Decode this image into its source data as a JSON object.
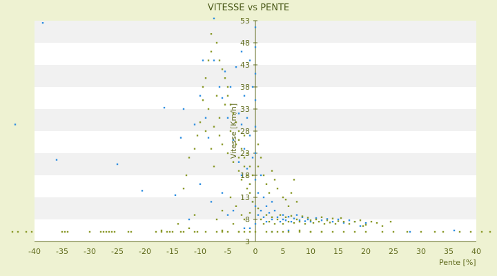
{
  "chart_data": {
    "type": "scatter",
    "title": "VITESSE vs PENTE",
    "xlabel": "Pente [%]",
    "ylabel": "Vitesse [Km/h]",
    "xlim": [
      -40,
      40
    ],
    "ylim": [
      3,
      53
    ],
    "x_ticks": [
      -40,
      -35,
      -30,
      -25,
      -20,
      -15,
      -10,
      -5,
      0,
      5,
      10,
      15,
      20,
      25,
      30,
      35,
      40
    ],
    "y_ticks": [
      3,
      8,
      13,
      18,
      23,
      28,
      33,
      38,
      43,
      48,
      53
    ],
    "grid": "alternating horizontal bands",
    "colors": {
      "background": "#eef2d2",
      "plot_band_light": "#ffffff",
      "plot_band_dark": "#f1f1f1",
      "axis": "#5f6a1c",
      "series_blue": "#2f8fe0",
      "series_olive": "#8a9a2b"
    },
    "series": [
      {
        "color": "#2f8fe0",
        "points": [
          [
            -38.5,
            52.5
          ],
          [
            -43.5,
            29.5
          ],
          [
            -36,
            21.5
          ],
          [
            -25,
            20.5
          ],
          [
            -16.5,
            33.3
          ],
          [
            -20.5,
            14.5
          ],
          [
            -14.5,
            13.5
          ],
          [
            -13.5,
            26.5
          ],
          [
            -13,
            33
          ],
          [
            -11,
            29.5
          ],
          [
            -10,
            36
          ],
          [
            -9.5,
            44
          ],
          [
            -9,
            31
          ],
          [
            -8.5,
            26.5
          ],
          [
            -7.5,
            53.5
          ],
          [
            -7.5,
            44
          ],
          [
            -6.5,
            38
          ],
          [
            -6,
            35.5
          ],
          [
            -5.5,
            41.5
          ],
          [
            -5,
            31
          ],
          [
            -4.5,
            38
          ],
          [
            -4,
            26
          ],
          [
            -3.5,
            42.5
          ],
          [
            -3,
            32
          ],
          [
            -3,
            21
          ],
          [
            -2.5,
            46
          ],
          [
            -2.5,
            29.5
          ],
          [
            -2.5,
            18
          ],
          [
            -2,
            36
          ],
          [
            -2,
            24
          ],
          [
            -1.5,
            31
          ],
          [
            -1.5,
            19.5
          ],
          [
            -1,
            44
          ],
          [
            -1,
            27
          ],
          [
            -1,
            16
          ],
          [
            -0.5,
            38
          ],
          [
            -0.5,
            22
          ],
          [
            -0.5,
            12
          ],
          [
            0,
            51.5
          ],
          [
            0,
            47
          ],
          [
            0,
            41
          ],
          [
            0,
            35
          ],
          [
            0,
            29
          ],
          [
            0,
            23
          ],
          [
            0,
            17
          ],
          [
            0,
            11
          ],
          [
            0,
            7
          ],
          [
            0.5,
            14
          ],
          [
            0.5,
            9
          ],
          [
            1,
            18
          ],
          [
            1,
            10
          ],
          [
            1.5,
            13
          ],
          [
            1.5,
            8.5
          ],
          [
            2,
            11
          ],
          [
            2,
            7.5
          ],
          [
            2.5,
            9.5
          ],
          [
            3,
            12
          ],
          [
            3,
            8
          ],
          [
            3.5,
            10
          ],
          [
            4,
            8.5
          ],
          [
            4.5,
            7.5
          ],
          [
            5,
            9
          ],
          [
            5,
            8
          ],
          [
            5.5,
            7.8
          ],
          [
            6,
            8.6
          ],
          [
            6.5,
            7.5
          ],
          [
            7,
            8.2
          ],
          [
            7.5,
            9
          ],
          [
            8,
            7.8
          ],
          [
            8.5,
            8.5
          ],
          [
            9,
            7.6
          ],
          [
            9.5,
            8
          ],
          [
            10,
            7.5
          ],
          [
            11,
            8.3
          ],
          [
            12,
            7.8
          ],
          [
            13,
            8.1
          ],
          [
            14,
            7.5
          ],
          [
            15,
            8
          ],
          [
            16,
            7.2
          ],
          [
            17,
            7.8
          ],
          [
            18,
            7.5
          ],
          [
            19,
            6.5
          ],
          [
            20,
            7.2
          ],
          [
            6,
            5.5
          ],
          [
            3,
            4.5
          ],
          [
            -2,
            6
          ],
          [
            -5,
            9
          ],
          [
            -8,
            12
          ],
          [
            -10,
            16
          ],
          [
            -12,
            8
          ],
          [
            28,
            3
          ],
          [
            36,
            5.5
          ],
          [
            -4,
            10
          ],
          [
            -6,
            14
          ],
          [
            -1,
            6
          ]
        ]
      },
      {
        "color": "#8a9a2b",
        "points": [
          [
            -44,
            3
          ],
          [
            -43,
            3
          ],
          [
            -41.5,
            3
          ],
          [
            -40.5,
            3
          ],
          [
            -35,
            3
          ],
          [
            -34.5,
            3
          ],
          [
            -34,
            3
          ],
          [
            -30,
            3
          ],
          [
            -28,
            3
          ],
          [
            -27.5,
            3
          ],
          [
            -27,
            3
          ],
          [
            -26.5,
            3
          ],
          [
            -26,
            3
          ],
          [
            -25.5,
            3
          ],
          [
            -23,
            3
          ],
          [
            -22.5,
            3
          ],
          [
            -18,
            3
          ],
          [
            -17,
            3
          ],
          [
            -16,
            3
          ],
          [
            -15.5,
            3
          ],
          [
            -13.5,
            3
          ],
          [
            -13,
            3
          ],
          [
            -11,
            3
          ],
          [
            -10.5,
            3
          ],
          [
            -7,
            3
          ],
          [
            -6,
            3
          ],
          [
            -5,
            3
          ],
          [
            -3,
            3
          ],
          [
            -2,
            3
          ],
          [
            0,
            3
          ],
          [
            2,
            3
          ],
          [
            3,
            3
          ],
          [
            5,
            3
          ],
          [
            8,
            3
          ],
          [
            10,
            3
          ],
          [
            12,
            3
          ],
          [
            14,
            3
          ],
          [
            16,
            3
          ],
          [
            18,
            3
          ],
          [
            20,
            3
          ],
          [
            23,
            3
          ],
          [
            25,
            3
          ],
          [
            27.5,
            3
          ],
          [
            30,
            3
          ],
          [
            32.5,
            3
          ],
          [
            34,
            3
          ],
          [
            37,
            3
          ],
          [
            39,
            3
          ],
          [
            41,
            3
          ],
          [
            42.5,
            3
          ],
          [
            -8,
            50
          ],
          [
            -8,
            46
          ],
          [
            -7,
            48
          ],
          [
            -6.5,
            44
          ],
          [
            -6,
            42
          ],
          [
            -5.5,
            40
          ],
          [
            -5,
            38
          ],
          [
            -5,
            36
          ],
          [
            -4.5,
            34
          ],
          [
            -4,
            32
          ],
          [
            -3.5,
            30
          ],
          [
            -3,
            28
          ],
          [
            -3,
            26
          ],
          [
            -2.5,
            24
          ],
          [
            -2,
            22
          ],
          [
            -2,
            20
          ],
          [
            -1.5,
            18
          ],
          [
            -1,
            16
          ],
          [
            -1,
            14
          ],
          [
            -0.5,
            12
          ],
          [
            -9,
            40
          ],
          [
            -9.5,
            35
          ],
          [
            -10,
            30
          ],
          [
            -10.5,
            27
          ],
          [
            -11,
            24
          ],
          [
            -12,
            22
          ],
          [
            -12.5,
            18
          ],
          [
            -13,
            15
          ],
          [
            -8.5,
            33
          ],
          [
            -7.5,
            29
          ],
          [
            -6.5,
            27
          ],
          [
            -6,
            25
          ],
          [
            -5,
            23
          ],
          [
            -4,
            21
          ],
          [
            -3,
            19
          ],
          [
            -2.5,
            17
          ],
          [
            -1.5,
            15
          ],
          [
            -4.5,
            13
          ],
          [
            -3.5,
            11
          ],
          [
            -2.5,
            9
          ],
          [
            0.5,
            25
          ],
          [
            0.5,
            20
          ],
          [
            1,
            22
          ],
          [
            1.5,
            18
          ],
          [
            2,
            16
          ],
          [
            2.5,
            14
          ],
          [
            3,
            19
          ],
          [
            3.5,
            17
          ],
          [
            4,
            15
          ],
          [
            5,
            13
          ],
          [
            6,
            11
          ],
          [
            7,
            17
          ],
          [
            7.5,
            12
          ],
          [
            6.5,
            14
          ],
          [
            5.5,
            12.5
          ],
          [
            1,
            8
          ],
          [
            1.5,
            7
          ],
          [
            2,
            9
          ],
          [
            2.5,
            7.5
          ],
          [
            3,
            8.5
          ],
          [
            3.5,
            7
          ],
          [
            4,
            8
          ],
          [
            4.5,
            9
          ],
          [
            5,
            7
          ],
          [
            5.5,
            8.5
          ],
          [
            6,
            7.5
          ],
          [
            6.5,
            8.8
          ],
          [
            7,
            7.2
          ],
          [
            7.5,
            8
          ],
          [
            8,
            7.5
          ],
          [
            8.5,
            8.7
          ],
          [
            9,
            7
          ],
          [
            9.5,
            8.4
          ],
          [
            10,
            7.8
          ],
          [
            10.5,
            7.2
          ],
          [
            11,
            8
          ],
          [
            11.5,
            7.5
          ],
          [
            12,
            8.5
          ],
          [
            12.5,
            7
          ],
          [
            13,
            7.8
          ],
          [
            13.5,
            7.3
          ],
          [
            14,
            8.2
          ],
          [
            14.5,
            7
          ],
          [
            15,
            7.6
          ],
          [
            15.5,
            8.3
          ],
          [
            16,
            7.5
          ],
          [
            17,
            7
          ],
          [
            18,
            7.5
          ],
          [
            19,
            7.8
          ],
          [
            20,
            6.8
          ],
          [
            21,
            7.5
          ],
          [
            22,
            7.2
          ],
          [
            23,
            6.5
          ],
          [
            24.5,
            7.5
          ],
          [
            19.5,
            6.5
          ],
          [
            4,
            5
          ],
          [
            6,
            4.5
          ],
          [
            8,
            5.5
          ],
          [
            10,
            5
          ],
          [
            12,
            4.8
          ],
          [
            -1,
            5
          ],
          [
            -3,
            4.5
          ],
          [
            -6,
            5.5
          ],
          [
            -9,
            5
          ],
          [
            -12,
            6
          ],
          [
            -15,
            4.5
          ],
          [
            -17,
            5.5
          ],
          [
            -14,
            7
          ],
          [
            -11,
            9
          ],
          [
            -7,
            8
          ],
          [
            -6,
            10
          ],
          [
            -4,
            7
          ],
          [
            -2,
            8
          ],
          [
            -1,
            9.5
          ],
          [
            0.5,
            10.5
          ],
          [
            -7.5,
            20
          ],
          [
            -8,
            24
          ],
          [
            -9,
            28
          ],
          [
            -9.5,
            38
          ],
          [
            -8.5,
            44
          ],
          [
            -7,
            36
          ],
          [
            -6.5,
            31
          ],
          [
            -5.5,
            34
          ],
          [
            -4.5,
            28
          ],
          [
            -3.5,
            25
          ],
          [
            -3,
            22
          ],
          [
            -2,
            27
          ],
          [
            -1.5,
            23
          ],
          [
            -1,
            20
          ],
          [
            -0.5,
            18
          ]
        ]
      }
    ]
  }
}
